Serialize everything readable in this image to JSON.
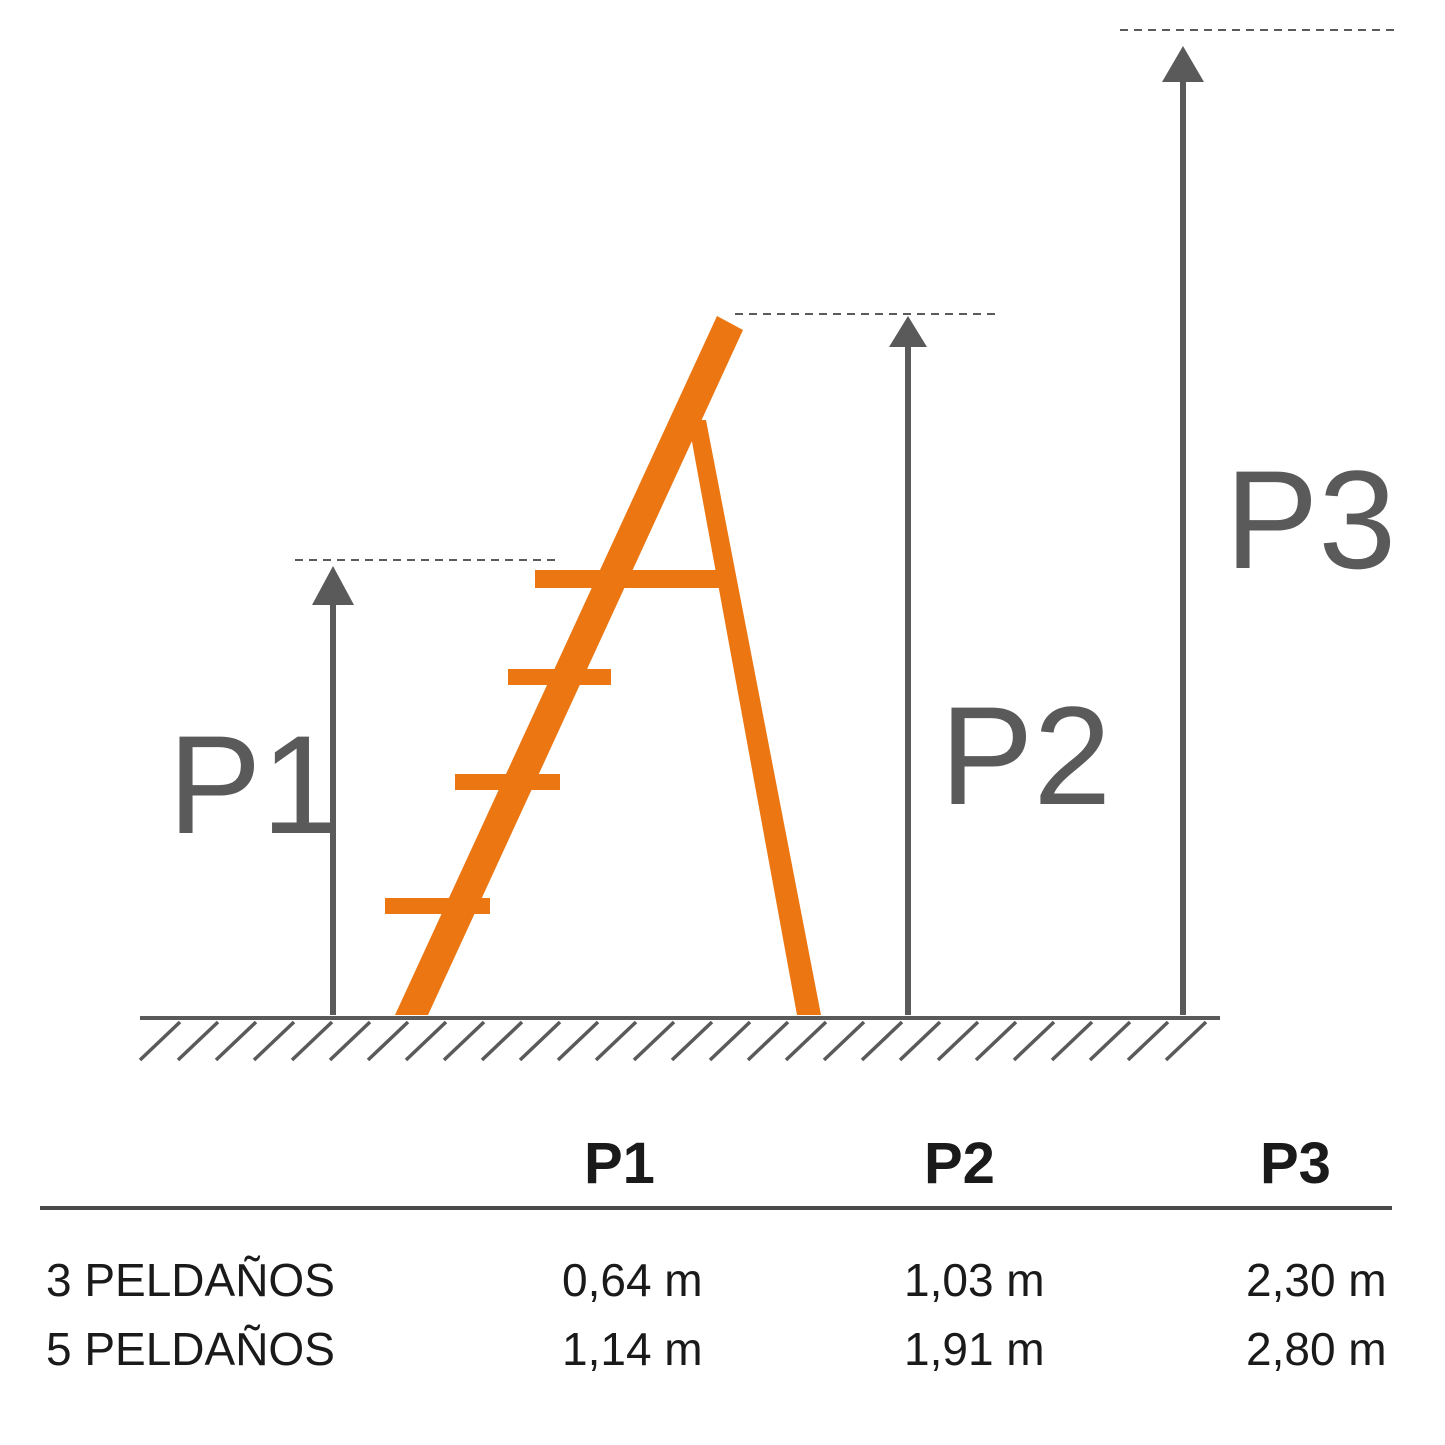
{
  "colors": {
    "ladder": "#ec7612",
    "lines": "#5a5a5a",
    "text": "#1a1a1a"
  },
  "diagram": {
    "labels": {
      "p1": "P1",
      "p2": "P2",
      "p3": "P3"
    }
  },
  "table": {
    "headers": [
      "P1",
      "P2",
      "P3"
    ],
    "rows": [
      {
        "label": "3 PELDAÑOS",
        "p1": "0,64 m",
        "p2": "1,03 m",
        "p3": "2,30 m"
      },
      {
        "label": "5 PELDAÑOS",
        "p1": "1,14 m",
        "p2": "1,91 m",
        "p3": "2,80 m"
      }
    ]
  }
}
